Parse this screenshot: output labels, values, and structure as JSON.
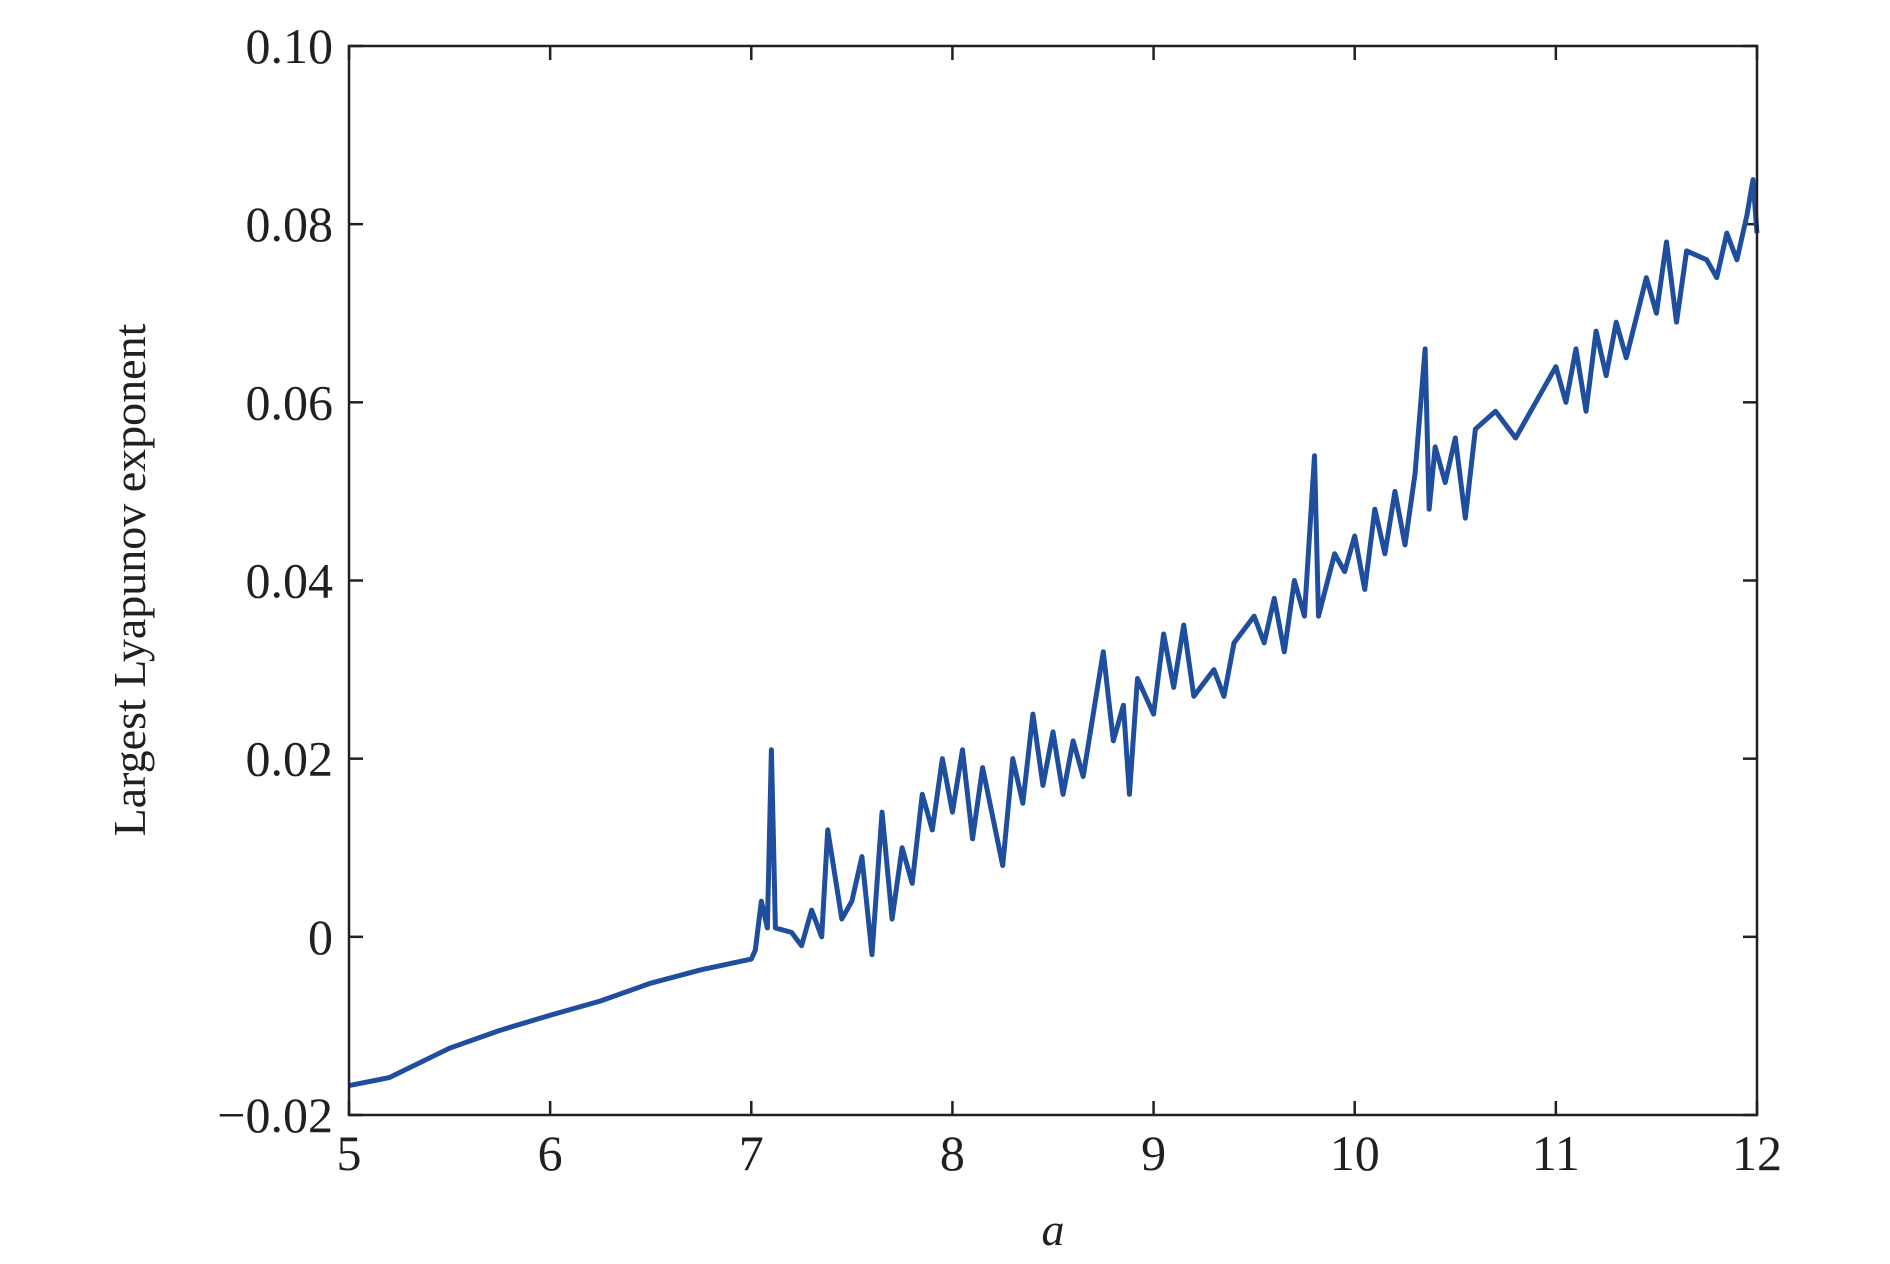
{
  "chart_data": {
    "type": "line",
    "x_label": "a",
    "y_label": "Largest Lyapunov exponent",
    "xlim": [
      5,
      12
    ],
    "ylim": [
      -0.02,
      0.1
    ],
    "xticks": [
      5,
      6,
      7,
      8,
      9,
      10,
      11,
      12
    ],
    "yticks": [
      {
        "value": -0.02,
        "label": "−0.02"
      },
      0,
      0.02,
      0.04,
      0.06,
      0.08,
      {
        "value": 0.1,
        "label": "0.10"
      }
    ],
    "series": [
      {
        "color": "#1f4e9f",
        "x": [
          5,
          5.2,
          5.5,
          5.75,
          6,
          6.25,
          6.5,
          6.75,
          7,
          7.02,
          7.05,
          7.08,
          7.1,
          7.12,
          7.2,
          7.25,
          7.3,
          7.35,
          7.38,
          7.45,
          7.5,
          7.55,
          7.6,
          7.65,
          7.7,
          7.75,
          7.8,
          7.85,
          7.9,
          7.95,
          8.0,
          8.05,
          8.1,
          8.15,
          8.25,
          8.3,
          8.35,
          8.4,
          8.45,
          8.5,
          8.55,
          8.6,
          8.65,
          8.7,
          8.75,
          8.8,
          8.85,
          8.88,
          8.92,
          9.0,
          9.05,
          9.1,
          9.15,
          9.2,
          9.3,
          9.35,
          9.4,
          9.5,
          9.55,
          9.6,
          9.65,
          9.7,
          9.75,
          9.8,
          9.82,
          9.9,
          9.95,
          10.0,
          10.05,
          10.1,
          10.15,
          10.2,
          10.25,
          10.3,
          10.35,
          10.37,
          10.4,
          10.45,
          10.5,
          10.55,
          10.6,
          10.7,
          10.8,
          10.9,
          11.0,
          11.05,
          11.1,
          11.15,
          11.2,
          11.25,
          11.3,
          11.35,
          11.45,
          11.5,
          11.55,
          11.6,
          11.65,
          11.75,
          11.8,
          11.85,
          11.9,
          11.95,
          11.98,
          12.0
        ],
        "values": [
          -0.0167,
          -0.0158,
          -0.0125,
          -0.0105,
          -0.0088,
          -0.0072,
          -0.0052,
          -0.0037,
          -0.0025,
          -0.0015,
          0.004,
          0.001,
          0.021,
          0.001,
          0.0005,
          -0.001,
          0.003,
          0.0,
          0.012,
          0.002,
          0.004,
          0.009,
          -0.002,
          0.014,
          0.002,
          0.01,
          0.006,
          0.016,
          0.012,
          0.02,
          0.014,
          0.021,
          0.011,
          0.019,
          0.008,
          0.02,
          0.015,
          0.025,
          0.017,
          0.023,
          0.016,
          0.022,
          0.018,
          0.025,
          0.032,
          0.022,
          0.026,
          0.016,
          0.029,
          0.025,
          0.034,
          0.028,
          0.035,
          0.027,
          0.03,
          0.027,
          0.033,
          0.036,
          0.033,
          0.038,
          0.032,
          0.04,
          0.036,
          0.054,
          0.036,
          0.043,
          0.041,
          0.045,
          0.039,
          0.048,
          0.043,
          0.05,
          0.044,
          0.052,
          0.066,
          0.048,
          0.055,
          0.051,
          0.056,
          0.047,
          0.057,
          0.059,
          0.056,
          0.06,
          0.064,
          0.06,
          0.066,
          0.059,
          0.068,
          0.063,
          0.069,
          0.065,
          0.074,
          0.07,
          0.078,
          0.069,
          0.077,
          0.076,
          0.074,
          0.079,
          0.076,
          0.081,
          0.085,
          0.079
        ]
      }
    ]
  }
}
